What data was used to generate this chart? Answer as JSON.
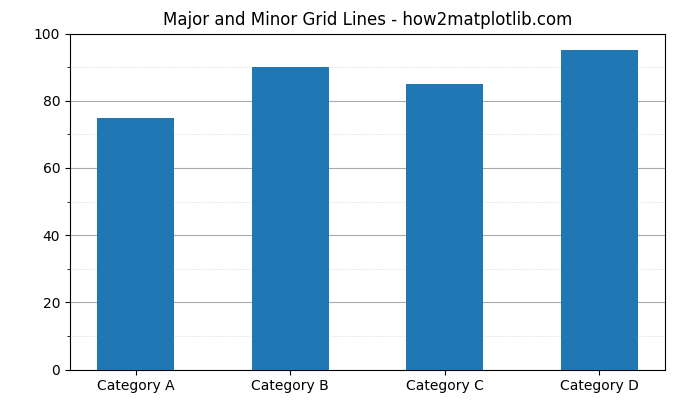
{
  "categories": [
    "Category A",
    "Category B",
    "Category C",
    "Category D"
  ],
  "values": [
    75,
    90,
    85,
    95
  ],
  "bar_color": "#1f77b4",
  "title": "Major and Minor Grid Lines - how2matplotlib.com",
  "ylim": [
    0,
    100
  ],
  "major_tick_interval": 20,
  "minor_tick_interval": 10,
  "major_grid_color": "#aaaaaa",
  "minor_grid_color": "#cccccc",
  "major_grid_linewidth": 0.8,
  "minor_grid_linewidth": 0.5,
  "major_grid_linestyle": "-",
  "minor_grid_linestyle": ":",
  "title_fontsize": 12,
  "bar_width": 0.5
}
